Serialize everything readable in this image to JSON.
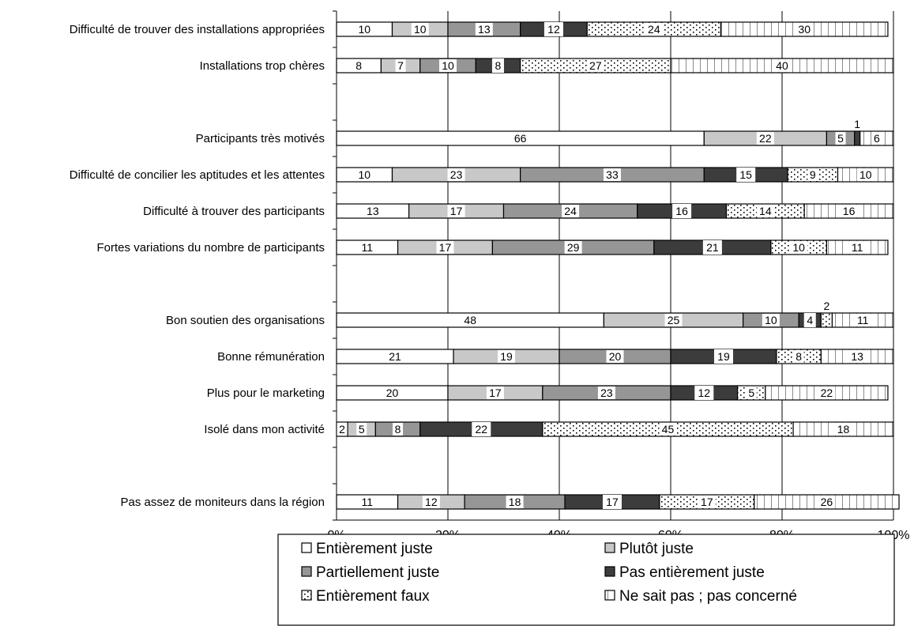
{
  "chart_data": {
    "type": "bar",
    "orientation": "horizontal",
    "stacked": true,
    "grid": true,
    "xlim": [
      0,
      100
    ],
    "x_ticks": [
      "0%",
      "20%",
      "40%",
      "60%",
      "80%",
      "100%"
    ],
    "legend_position": "bottom",
    "categories": [
      "Difficulté de trouver des installations appropriées",
      "Installations trop chères",
      "",
      "Participants très motivés",
      "Difficulté de concilier les aptitudes et les attentes",
      "Difficulté à trouver des participants",
      "Fortes variations du nombre de participants",
      "",
      "Bon soutien des organisations",
      "Bonne rémunération",
      "Plus pour le marketing",
      "Isolé dans mon activité",
      "",
      "Pas assez de moniteurs dans la région"
    ],
    "series": [
      {
        "name": "Entièrement juste",
        "color": "#ffffff",
        "pattern": "none",
        "values": [
          10,
          8,
          null,
          66,
          10,
          13,
          11,
          null,
          48,
          21,
          20,
          2,
          null,
          11
        ]
      },
      {
        "name": "Plutôt juste",
        "color": "#c8c8c8",
        "pattern": "none",
        "values": [
          10,
          7,
          null,
          22,
          23,
          17,
          17,
          null,
          25,
          19,
          17,
          5,
          null,
          12
        ]
      },
      {
        "name": "Partiellement juste",
        "color": "#969696",
        "pattern": "none",
        "values": [
          13,
          10,
          null,
          5,
          33,
          24,
          29,
          null,
          10,
          20,
          23,
          8,
          null,
          18
        ]
      },
      {
        "name": "Pas entièrement juste",
        "color": "#3c3c3c",
        "pattern": "none",
        "values": [
          12,
          8,
          null,
          1,
          15,
          16,
          21,
          null,
          4,
          19,
          12,
          22,
          null,
          17
        ]
      },
      {
        "name": "Entièrement faux",
        "color": "#ffffff",
        "pattern": "dots",
        "values": [
          24,
          27,
          null,
          0,
          9,
          14,
          10,
          null,
          2,
          8,
          5,
          45,
          null,
          17
        ]
      },
      {
        "name": "Ne sait pas ; pas concerné",
        "color": "#ffffff",
        "pattern": "vlines",
        "values": [
          30,
          40,
          null,
          6,
          10,
          16,
          11,
          null,
          11,
          13,
          22,
          18,
          null,
          26
        ]
      }
    ]
  }
}
